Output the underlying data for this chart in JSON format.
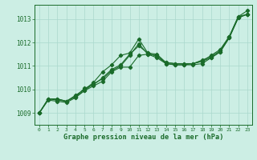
{
  "title": "Graphe pression niveau de la mer (hPa)",
  "background_color": "#cceee4",
  "line_color": "#1a6b2a",
  "grid_color": "#aad8cc",
  "xlim": [
    -0.5,
    23.5
  ],
  "ylim": [
    1008.5,
    1013.6
  ],
  "yticks": [
    1009,
    1010,
    1011,
    1012,
    1013
  ],
  "xticks": [
    0,
    1,
    2,
    3,
    4,
    5,
    6,
    7,
    8,
    9,
    10,
    11,
    12,
    13,
    14,
    15,
    16,
    17,
    18,
    19,
    20,
    21,
    22,
    23
  ],
  "series": [
    [
      1009.0,
      1009.6,
      1009.6,
      1009.5,
      1009.7,
      1010.05,
      1010.2,
      1010.5,
      1010.85,
      1011.05,
      1011.5,
      1011.85,
      1011.55,
      1011.5,
      1011.15,
      1011.1,
      1011.1,
      1011.1,
      1011.2,
      1011.45,
      1011.7,
      1012.25,
      1013.1,
      1013.35
    ],
    [
      1009.0,
      1009.6,
      1009.6,
      1009.5,
      1009.75,
      1010.0,
      1010.3,
      1010.75,
      1011.05,
      1011.45,
      1011.55,
      1012.15,
      1011.55,
      1011.4,
      1011.15,
      1011.1,
      1011.1,
      1011.1,
      1011.25,
      1011.4,
      1011.65,
      1012.25,
      1013.1,
      1013.2
    ],
    [
      1009.0,
      1009.55,
      1009.5,
      1009.45,
      1009.65,
      1009.95,
      1010.15,
      1010.35,
      1010.75,
      1010.95,
      1010.95,
      1011.45,
      1011.5,
      1011.45,
      1011.1,
      1011.05,
      1011.05,
      1011.05,
      1011.1,
      1011.35,
      1011.6,
      1012.2,
      1013.05,
      1013.2
    ],
    [
      1009.0,
      1009.6,
      1009.55,
      1009.5,
      1009.7,
      1009.95,
      1010.25,
      1010.45,
      1010.8,
      1011.0,
      1011.45,
      1011.95,
      1011.5,
      1011.35,
      1011.1,
      1011.05,
      1011.05,
      1011.1,
      1011.2,
      1011.35,
      1011.6,
      1012.2,
      1013.05,
      1013.2
    ]
  ]
}
